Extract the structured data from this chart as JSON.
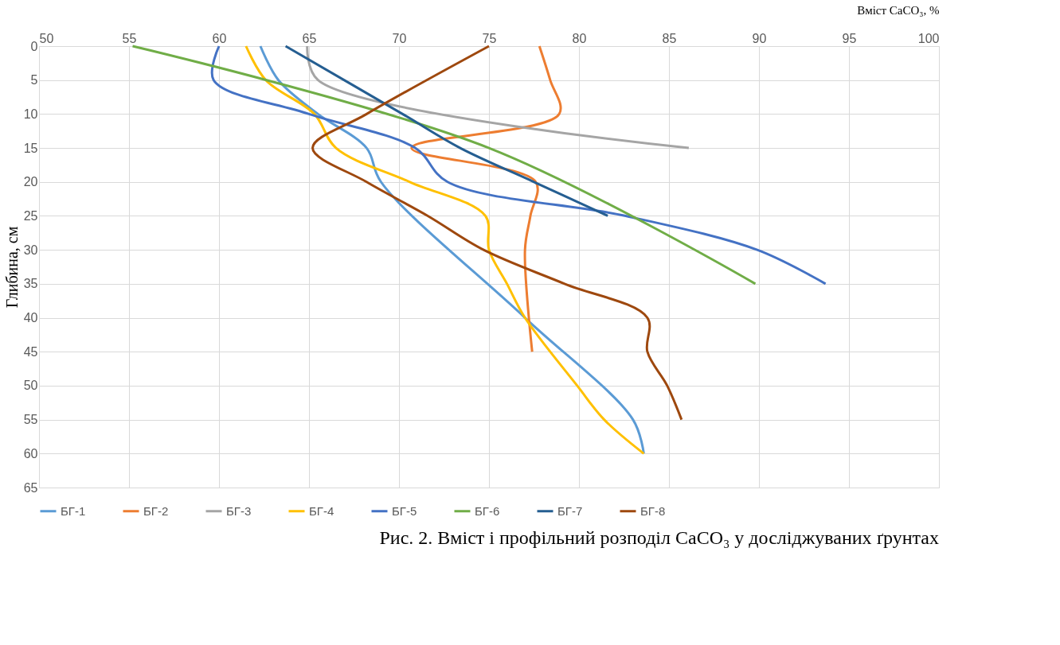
{
  "chart_data": {
    "type": "line",
    "xlabel": "Вміст CaCO₃, %",
    "ylabel": "Глибина, см",
    "annotations": [
      "Рис. 2. Вміст і профільний розподіл CaCO₃ у досліджуваних ґрунтах"
    ],
    "xlim": [
      50,
      100
    ],
    "xticks": [
      50,
      55,
      60,
      65,
      70,
      75,
      80,
      85,
      90,
      95,
      100
    ],
    "ylim": [
      65,
      0
    ],
    "yticks": [
      0,
      5,
      10,
      15,
      20,
      25,
      30,
      35,
      40,
      45,
      50,
      55,
      60,
      65
    ],
    "grid": true,
    "legend": "bottom",
    "marker": "none",
    "line_style": "solid",
    "series": [
      {
        "name": "БГ-1",
        "color": "#5b9bd5",
        "x": [
          62.3,
          63.3,
          65.5,
          68.2,
          69.0,
          77.0,
          83.0,
          83.6
        ],
        "values": [
          0,
          5,
          10,
          15,
          20,
          40,
          55,
          60
        ]
      },
      {
        "name": "БГ-2",
        "color": "#ed7d31",
        "x": [
          77.8,
          78.4,
          78.9,
          70.7,
          77.6,
          77.3,
          77.0,
          77.4
        ],
        "values": [
          0,
          5,
          10,
          15,
          20,
          25,
          30,
          45
        ]
      },
      {
        "name": "БГ-3",
        "color": "#a5a5a5",
        "x": [
          64.9,
          65.5,
          86.1
        ],
        "values": [
          0,
          5,
          15
        ]
      },
      {
        "name": "БГ-4",
        "color": "#ffc000",
        "x": [
          61.5,
          62.6,
          65.3,
          66.5,
          70.6,
          74.8,
          75.0,
          76.0,
          77.0,
          79.9,
          81.4,
          83.6
        ],
        "values": [
          0,
          5,
          10,
          15,
          20,
          25,
          30,
          35,
          40,
          50,
          55,
          60
        ]
      },
      {
        "name": "БГ-5",
        "color": "#4472c4",
        "x": [
          60.0,
          59.7,
          65.0,
          70.9,
          72.7,
          82.6,
          89.9,
          93.7
        ],
        "values": [
          0,
          5,
          10,
          15,
          20,
          25,
          30,
          35
        ]
      },
      {
        "name": "БГ-6",
        "color": "#70ad47",
        "x": [
          55.2,
          75.0,
          89.8
        ],
        "values": [
          0,
          15,
          35
        ]
      },
      {
        "name": "БГ-7",
        "color": "#255e91",
        "x": [
          63.7,
          70.2,
          73.4,
          77.5,
          81.6
        ],
        "values": [
          0,
          10,
          15,
          20,
          25
        ]
      },
      {
        "name": "БГ-8",
        "color": "#9e480e",
        "x": [
          75.0,
          68.2,
          65.2,
          68.2,
          71.6,
          74.7,
          79.2,
          83.8,
          83.8,
          84.9,
          85.7
        ],
        "values": [
          0,
          10,
          15,
          20,
          25,
          30,
          35,
          40,
          45,
          50,
          55
        ]
      }
    ]
  }
}
